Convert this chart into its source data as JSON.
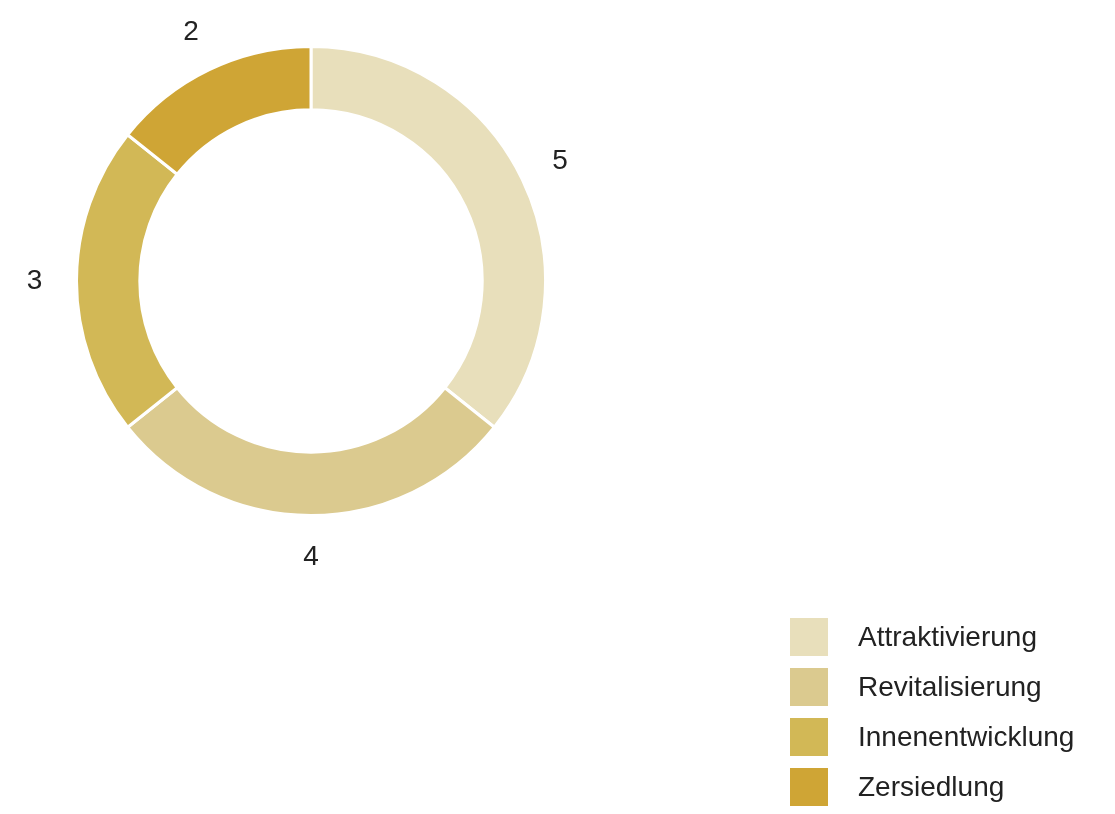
{
  "chart_data": {
    "type": "donut",
    "categories": [
      "Attraktivierung",
      "Revitalisierung",
      "Innenentwicklung",
      "Zersiedlung"
    ],
    "values": [
      5,
      4,
      3,
      2
    ],
    "colors": [
      "#e8dfbb",
      "#dbca8f",
      "#d2b856",
      "#cfa535"
    ],
    "data_labels": true,
    "legend": "bottom right"
  }
}
